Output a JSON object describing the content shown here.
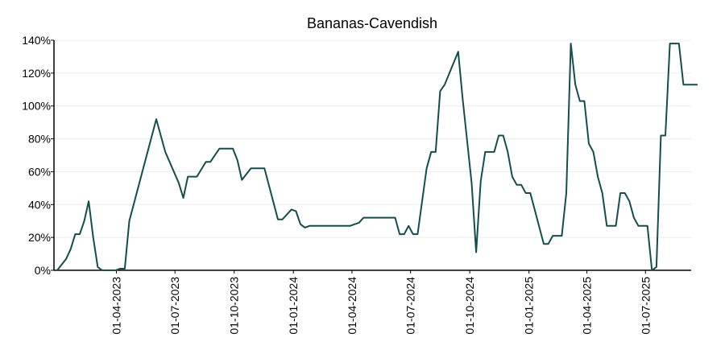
{
  "chart_data": {
    "type": "line",
    "title": "Bananas-Cavendish",
    "xlabel": "",
    "ylabel": "",
    "y_format": "percent",
    "ylim": [
      0,
      140
    ],
    "y_ticks": [
      0,
      20,
      40,
      60,
      80,
      100,
      120,
      140
    ],
    "x_ticks": [
      "2023-04-01",
      "2023-07-01",
      "2023-10-01",
      "2024-01-01",
      "2024-04-01",
      "2024-07-01",
      "2024-10-01",
      "2025-01-01",
      "2025-04-01",
      "2025-07-01"
    ],
    "x_tick_labels": [
      "01-04-2023",
      "01-07-2023",
      "01-10-2023",
      "01-01-2024",
      "01-04-2024",
      "01-07-2024",
      "01-10-2024",
      "01-01-2025",
      "01-04-2025",
      "01-07-2025"
    ],
    "xlim": [
      "2022-12-25",
      "2025-09-10"
    ],
    "grid": "horizontal",
    "color": "#144d4d",
    "series": [
      {
        "points": [
          [
            "2022-12-30",
            0
          ],
          [
            "2023-01-13",
            7
          ],
          [
            "2023-01-20",
            13
          ],
          [
            "2023-01-27",
            22
          ],
          [
            "2023-02-03",
            22
          ],
          [
            "2023-02-10",
            30
          ],
          [
            "2023-02-17",
            42
          ],
          [
            "2023-02-24",
            20
          ],
          [
            "2023-03-03",
            2
          ],
          [
            "2023-03-10",
            0
          ],
          [
            "2023-03-31",
            0
          ],
          [
            "2023-04-07",
            1
          ],
          [
            "2023-04-14",
            1
          ],
          [
            "2023-04-21",
            30
          ],
          [
            "2023-06-02",
            92
          ],
          [
            "2023-06-16",
            72
          ],
          [
            "2023-07-07",
            53
          ],
          [
            "2023-07-14",
            44
          ],
          [
            "2023-07-21",
            57
          ],
          [
            "2023-08-04",
            57
          ],
          [
            "2023-08-18",
            66
          ],
          [
            "2023-08-25",
            66
          ],
          [
            "2023-09-08",
            74
          ],
          [
            "2023-09-29",
            74
          ],
          [
            "2023-10-06",
            67
          ],
          [
            "2023-10-13",
            55
          ],
          [
            "2023-10-27",
            62
          ],
          [
            "2023-11-17",
            62
          ],
          [
            "2023-12-08",
            31
          ],
          [
            "2023-12-15",
            31
          ],
          [
            "2023-12-29",
            37
          ],
          [
            "2024-01-05",
            36
          ],
          [
            "2024-01-12",
            28
          ],
          [
            "2024-01-19",
            26
          ],
          [
            "2024-01-26",
            27
          ],
          [
            "2024-03-29",
            27
          ],
          [
            "2024-04-12",
            29
          ],
          [
            "2024-04-19",
            32
          ],
          [
            "2024-06-07",
            32
          ],
          [
            "2024-06-14",
            22
          ],
          [
            "2024-06-21",
            22
          ],
          [
            "2024-06-28",
            27
          ],
          [
            "2024-07-05",
            22
          ],
          [
            "2024-07-12",
            22
          ],
          [
            "2024-07-26",
            62
          ],
          [
            "2024-08-02",
            72
          ],
          [
            "2024-08-09",
            72
          ],
          [
            "2024-08-16",
            109
          ],
          [
            "2024-08-23",
            113
          ],
          [
            "2024-09-13",
            133
          ],
          [
            "2024-09-20",
            104
          ],
          [
            "2024-10-04",
            53
          ],
          [
            "2024-10-11",
            11
          ],
          [
            "2024-10-18",
            54
          ],
          [
            "2024-10-25",
            72
          ],
          [
            "2024-11-08",
            72
          ],
          [
            "2024-11-15",
            82
          ],
          [
            "2024-11-22",
            82
          ],
          [
            "2024-11-29",
            72
          ],
          [
            "2024-12-06",
            57
          ],
          [
            "2024-12-13",
            52
          ],
          [
            "2024-12-20",
            52
          ],
          [
            "2024-12-27",
            47
          ],
          [
            "2025-01-03",
            47
          ],
          [
            "2025-01-24",
            16
          ],
          [
            "2025-01-31",
            16
          ],
          [
            "2025-02-07",
            21
          ],
          [
            "2025-02-21",
            21
          ],
          [
            "2025-02-28",
            47
          ],
          [
            "2025-03-07",
            138
          ],
          [
            "2025-03-14",
            113
          ],
          [
            "2025-03-21",
            103
          ],
          [
            "2025-03-28",
            103
          ],
          [
            "2025-04-04",
            77
          ],
          [
            "2025-04-11",
            72
          ],
          [
            "2025-04-18",
            57
          ],
          [
            "2025-04-25",
            47
          ],
          [
            "2025-05-02",
            27
          ],
          [
            "2025-05-16",
            27
          ],
          [
            "2025-05-23",
            47
          ],
          [
            "2025-05-30",
            47
          ],
          [
            "2025-06-06",
            42
          ],
          [
            "2025-06-13",
            32
          ],
          [
            "2025-06-20",
            27
          ],
          [
            "2025-07-04",
            27
          ],
          [
            "2025-07-11",
            0
          ],
          [
            "2025-07-18",
            2
          ],
          [
            "2025-07-25",
            82
          ],
          [
            "2025-08-01",
            82
          ],
          [
            "2025-08-08",
            138
          ],
          [
            "2025-08-22",
            138
          ],
          [
            "2025-08-29",
            113
          ],
          [
            "2025-09-19",
            113
          ]
        ]
      }
    ]
  }
}
